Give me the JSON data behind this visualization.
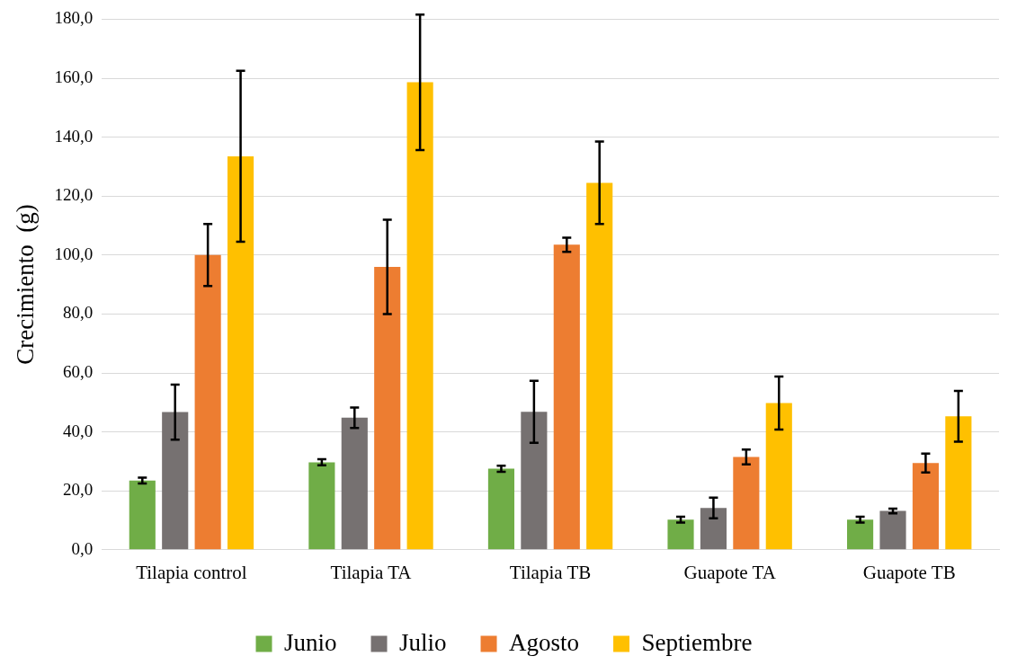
{
  "chart_data": {
    "type": "bar",
    "ylabel": "Crecimiento  (g)",
    "categories": [
      "Tilapia control",
      "Tilapia TA",
      "Tilapia TB",
      "Guapote TA",
      "Guapote TB"
    ],
    "series": [
      {
        "name": "Junio",
        "color": "#70ad47",
        "values": [
          23.5,
          29.7,
          27.5,
          10.2,
          10.2
        ],
        "errors": [
          1,
          1,
          1,
          1,
          1
        ]
      },
      {
        "name": "Julio",
        "color": "#767171",
        "values": [
          46.7,
          44.8,
          46.8,
          14.2,
          13.2
        ],
        "errors": [
          9.3,
          3.5,
          10.5,
          3.5,
          0.8
        ]
      },
      {
        "name": "Agosto",
        "color": "#ed7d31",
        "values": [
          100.0,
          96.0,
          103.5,
          31.5,
          29.4
        ],
        "errors": [
          10.5,
          16,
          2.4,
          2.5,
          3.2
        ]
      },
      {
        "name": "Septiembre",
        "color": "#ffc000",
        "values": [
          133.5,
          158.6,
          124.5,
          49.8,
          45.3
        ],
        "errors": [
          29,
          23,
          14,
          9,
          8.6
        ]
      }
    ],
    "ylim": [
      0,
      180
    ],
    "yticks": [
      {
        "value": 0,
        "label": "0,0"
      },
      {
        "value": 20,
        "label": "20,0"
      },
      {
        "value": 40,
        "label": "40,0"
      },
      {
        "value": 60,
        "label": "60,0"
      },
      {
        "value": 80,
        "label": "80,0"
      },
      {
        "value": 100,
        "label": "100,0"
      },
      {
        "value": 120,
        "label": "120,0"
      },
      {
        "value": 140,
        "label": "140,0"
      },
      {
        "value": 160,
        "label": "160,0"
      },
      {
        "value": 180,
        "label": "180,0"
      }
    ],
    "grid": "y",
    "legend": "bottom"
  }
}
